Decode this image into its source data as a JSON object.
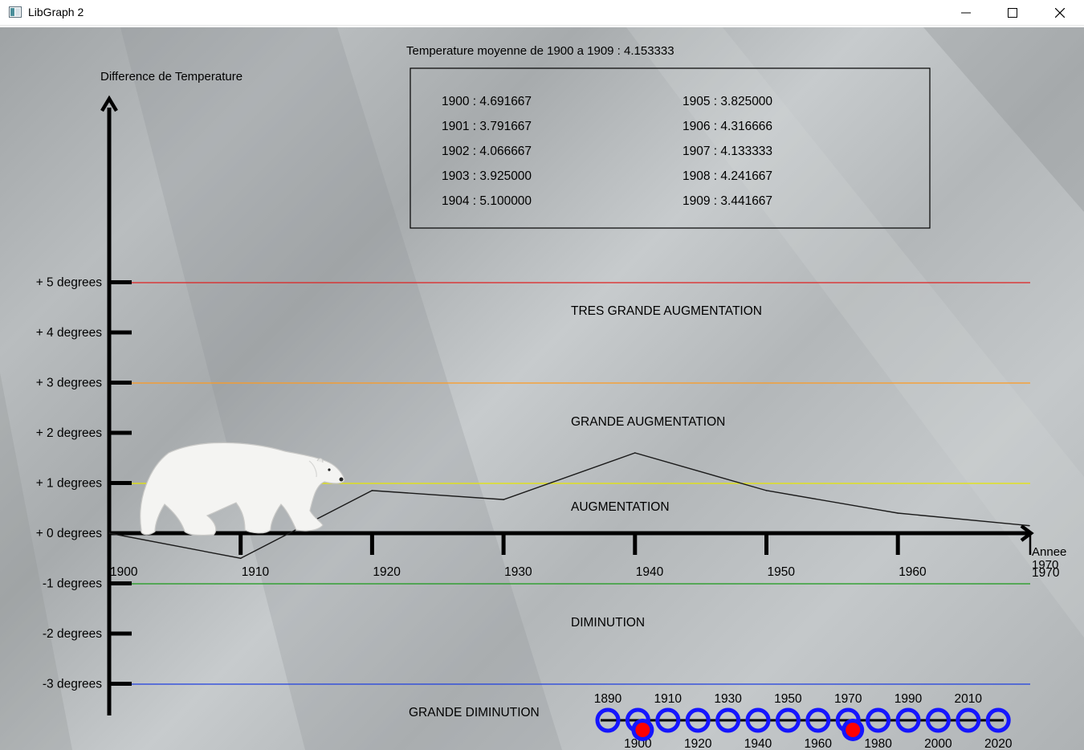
{
  "window": {
    "title": "LibGraph 2"
  },
  "graph": {
    "y_axis_title": "Difference de Temperature",
    "x_axis_title": "Annee",
    "avg_label": "Temperature moyenne de 1900 a 1909 : 4.153333",
    "y_labels": [
      "+ 5 degrees",
      "+ 4 degrees",
      "+ 3 degrees",
      "+ 2 degrees",
      "+ 1 degrees",
      "+ 0 degrees",
      "-1 degrees",
      "-2 degrees",
      "-3 degrees"
    ],
    "x_labels": [
      "1900",
      "1910",
      "1920",
      "1930",
      "1940",
      "1950",
      "1960",
      "1970"
    ],
    "x_end_overlap_label": "1970",
    "zones": {
      "very_high": "TRES GRANDE AUGMENTATION",
      "high": "GRANDE AUGMENTATION",
      "increase": "AUGMENTATION",
      "decrease": "DIMINUTION",
      "big_decrease": "GRANDE DIMINUTION"
    },
    "line_colors": {
      "red": "#e02020",
      "orange": "#ff9a1f",
      "yellow": "#e6e600",
      "green": "#1a9a1a",
      "blue": "#1f3fe0"
    },
    "stats_left": [
      "1900 : 4.691667",
      "1901 : 3.791667",
      "1902 : 4.066667",
      "1903 : 3.925000",
      "1904 : 5.100000"
    ],
    "stats_right": [
      "1905 : 3.825000",
      "1906 : 4.316666",
      "1907 : 4.133333",
      "1908 : 4.241667",
      "1909 : 3.441667"
    ]
  },
  "chart_data": {
    "type": "line",
    "x": [
      1900,
      1910,
      1920,
      1930,
      1940,
      1950,
      1960,
      1970
    ],
    "values": [
      0,
      -0.5,
      0.85,
      0.67,
      1.6,
      0.85,
      0.4,
      0.15
    ],
    "ylim": [
      -3.6,
      8.5
    ],
    "xlim": [
      1900,
      1970
    ],
    "xlabel": "Annee",
    "ylabel": "Difference de Temperature",
    "title": "Temperature moyenne de 1900 a 1909 : 4.153333",
    "reference_lines": [
      5,
      3,
      1,
      -1,
      -3
    ],
    "grid": false
  },
  "slider": {
    "top_labels": [
      "1890",
      "1910",
      "1930",
      "1950",
      "1970",
      "1990",
      "2010"
    ],
    "bottom_labels": [
      "1900",
      "1920",
      "1940",
      "1960",
      "1980",
      "2000",
      "2020"
    ],
    "selected": [
      "1900",
      "1970"
    ],
    "ring_color": "#1515ff",
    "marker_color": "#ff0000"
  }
}
